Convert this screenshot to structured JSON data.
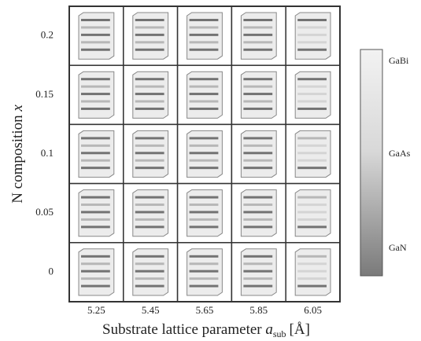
{
  "x_axis": {
    "label": {
      "text": "Substrate lattice parameter",
      "var": "a",
      "sub": "sub",
      "unit": "[Å]"
    },
    "ticks": [
      "5.25",
      "5.45",
      "5.65",
      "5.85",
      "6.05"
    ]
  },
  "y_axis": {
    "label": {
      "text": "N composition",
      "var": "x"
    },
    "ticks": [
      "0.2",
      "0.15",
      "0.1",
      "0.05",
      "0"
    ]
  },
  "colorbar": {
    "labels": [
      "GaBi",
      "GaAs",
      "GaN"
    ]
  }
}
